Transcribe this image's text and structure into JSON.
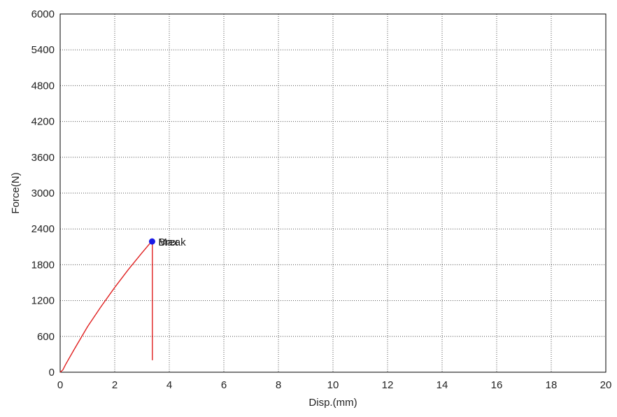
{
  "chart_data": {
    "type": "line",
    "xlabel": "Disp.(mm)",
    "ylabel": "Force(N)",
    "xlim": [
      0,
      20
    ],
    "ylim": [
      0,
      6000
    ],
    "x_ticks": [
      0,
      2,
      4,
      6,
      8,
      10,
      12,
      14,
      16,
      18,
      20
    ],
    "y_ticks": [
      0,
      600,
      1200,
      1800,
      2400,
      3000,
      3600,
      4200,
      4800,
      5400,
      6000
    ],
    "x_tick_labels": [
      "0",
      "2",
      "4",
      "6",
      "8",
      "10",
      "12",
      "14",
      "16",
      "18",
      "20"
    ],
    "y_tick_labels": [
      "0",
      "600",
      "1200",
      "1800",
      "2400",
      "3000",
      "3600",
      "4200",
      "4800",
      "5400",
      "6000"
    ],
    "grid": true,
    "series": [
      {
        "color": "#e02020",
        "points": [
          [
            0.0,
            0
          ],
          [
            0.1,
            40
          ],
          [
            0.2,
            130
          ],
          [
            0.5,
            370
          ],
          [
            1.0,
            760
          ],
          [
            1.5,
            1100
          ],
          [
            2.0,
            1420
          ],
          [
            2.5,
            1720
          ],
          [
            3.0,
            2000
          ],
          [
            3.35,
            2190
          ],
          [
            3.38,
            2190
          ],
          [
            3.38,
            200
          ]
        ]
      }
    ],
    "markers": [
      {
        "x": 3.37,
        "y": 2190,
        "color": "#1a1ae6",
        "labels": [
          "Max",
          "Break"
        ]
      }
    ]
  }
}
